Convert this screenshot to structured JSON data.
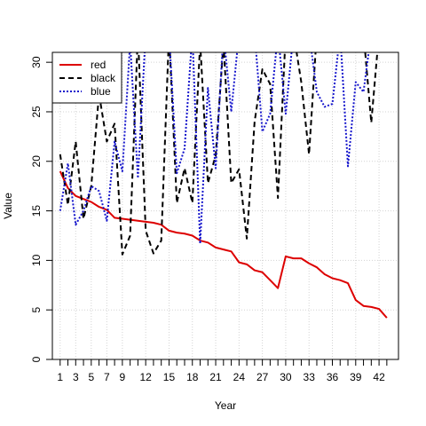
{
  "chart_data": {
    "type": "line",
    "title": "",
    "xlabel": "Year",
    "ylabel": "Value",
    "xlim": [
      0,
      44.5
    ],
    "ylim": [
      0,
      31
    ],
    "x_ticks": [
      1,
      3,
      5,
      7,
      9,
      12,
      15,
      18,
      21,
      24,
      27,
      30,
      33,
      36,
      39,
      42
    ],
    "y_ticks": [
      0,
      5,
      10,
      15,
      20,
      25,
      30
    ],
    "grid": true,
    "legend_position": "top-left",
    "x": [
      1,
      2,
      3,
      4,
      5,
      6,
      7,
      8,
      9,
      10,
      11,
      12,
      13,
      14,
      15,
      16,
      17,
      18,
      19,
      20,
      21,
      22,
      23,
      24,
      25,
      26,
      27,
      28,
      29,
      30,
      31,
      32,
      33,
      34,
      35,
      36,
      37,
      38,
      39,
      40,
      41,
      42,
      43
    ],
    "series": [
      {
        "name": "red",
        "color": "#dd0000",
        "style": "solid",
        "values": [
          19.0,
          17.3,
          16.5,
          16.2,
          15.9,
          15.4,
          15.1,
          14.3,
          14.2,
          14.1,
          14.0,
          13.9,
          13.8,
          13.6,
          13.0,
          12.8,
          12.7,
          12.5,
          12.0,
          11.8,
          11.3,
          11.1,
          10.9,
          9.8,
          9.6,
          9.0,
          8.8,
          8.0,
          7.2,
          10.4,
          10.2,
          10.2,
          9.7,
          9.3,
          8.6,
          8.2,
          8.0,
          7.7,
          6.0,
          5.4,
          5.3,
          5.1,
          4.2
        ]
      },
      {
        "name": "black",
        "color": "#000000",
        "style": "dashed",
        "values": [
          20.7,
          15.6,
          22.0,
          14.2,
          17.5,
          26.8,
          22.0,
          23.8,
          10.6,
          12.5,
          33.0,
          13.0,
          10.7,
          12.0,
          33.0,
          15.8,
          19.3,
          15.8,
          32.0,
          17.8,
          20.6,
          32.0,
          17.8,
          19.2,
          12.2,
          24.0,
          29.3,
          27.8,
          16.3,
          33.0,
          33.0,
          28.0,
          20.7,
          33.0,
          33.0,
          33.0,
          33.0,
          33.0,
          33.0,
          33.0,
          23.9,
          33.0,
          33.0
        ]
      },
      {
        "name": "blue",
        "color": "#1515cc",
        "style": "dotted",
        "values": [
          15.0,
          19.8,
          13.6,
          15.0,
          17.5,
          17.0,
          14.0,
          22.0,
          19.0,
          32.0,
          18.3,
          33.0,
          33.0,
          33.0,
          33.0,
          18.8,
          21.3,
          33.0,
          11.7,
          27.4,
          19.3,
          33.0,
          25.0,
          33.0,
          33.0,
          33.0,
          23.0,
          24.8,
          33.0,
          24.8,
          33.0,
          33.0,
          33.0,
          27.0,
          25.5,
          25.8,
          33.0,
          19.5,
          28.0,
          27.0,
          33.0,
          33.0,
          33.0
        ]
      }
    ]
  }
}
